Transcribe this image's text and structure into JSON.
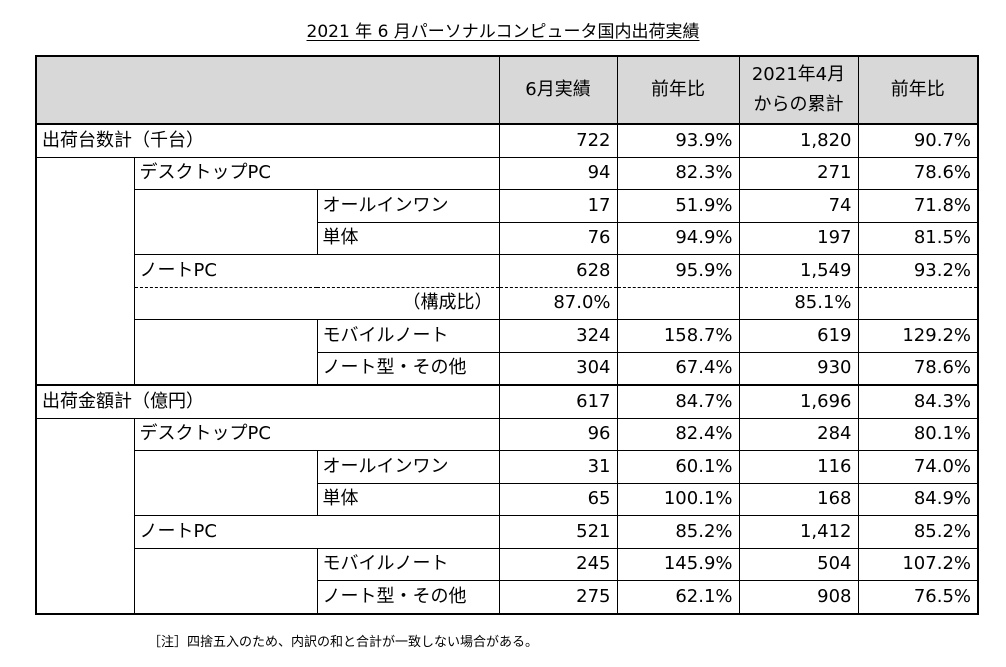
{
  "title": "2021 年 6 月パーソナルコンピュータ国内出荷実績",
  "header": {
    "col_june": "6月実績",
    "col_yoy1": "前年比",
    "col_cum_line1": "2021年4月",
    "col_cum_line2": "からの累計",
    "col_yoy2": "前年比"
  },
  "units": {
    "label": "出荷台数計（千台）",
    "total": [
      "722",
      "93.9%",
      "1,820",
      "90.7%"
    ],
    "desktop": {
      "label": "デスクトップPC",
      "values": [
        "94",
        "82.3%",
        "271",
        "78.6%"
      ]
    },
    "allinone": {
      "label": "オールインワン",
      "values": [
        "17",
        "51.9%",
        "74",
        "71.8%"
      ]
    },
    "single": {
      "label": "単体",
      "values": [
        "76",
        "94.9%",
        "197",
        "81.5%"
      ]
    },
    "notebook": {
      "label": "ノートPC",
      "values": [
        "628",
        "95.9%",
        "1,549",
        "93.2%"
      ]
    },
    "ratio": {
      "label": "（構成比）",
      "june": "87.0%",
      "cum": "85.1%"
    },
    "mobile": {
      "label": "モバイルノート",
      "values": [
        "324",
        "158.7%",
        "619",
        "129.2%"
      ]
    },
    "other": {
      "label": "ノート型・その他",
      "values": [
        "304",
        "67.4%",
        "930",
        "78.6%"
      ]
    }
  },
  "amount": {
    "label": "出荷金額計（億円）",
    "total": [
      "617",
      "84.7%",
      "1,696",
      "84.3%"
    ],
    "desktop": {
      "label": "デスクトップPC",
      "values": [
        "96",
        "82.4%",
        "284",
        "80.1%"
      ]
    },
    "allinone": {
      "label": "オールインワン",
      "values": [
        "31",
        "60.1%",
        "116",
        "74.0%"
      ]
    },
    "single": {
      "label": "単体",
      "values": [
        "65",
        "100.1%",
        "168",
        "84.9%"
      ]
    },
    "notebook": {
      "label": "ノートPC",
      "values": [
        "521",
        "85.2%",
        "1,412",
        "85.2%"
      ]
    },
    "mobile": {
      "label": "モバイルノート",
      "values": [
        "245",
        "145.9%",
        "504",
        "107.2%"
      ]
    },
    "other": {
      "label": "ノート型・その他",
      "values": [
        "275",
        "62.1%",
        "908",
        "76.5%"
      ]
    }
  },
  "note": "［注］四捨五入のため、内訳の和と合計が一致しない場合がある。"
}
